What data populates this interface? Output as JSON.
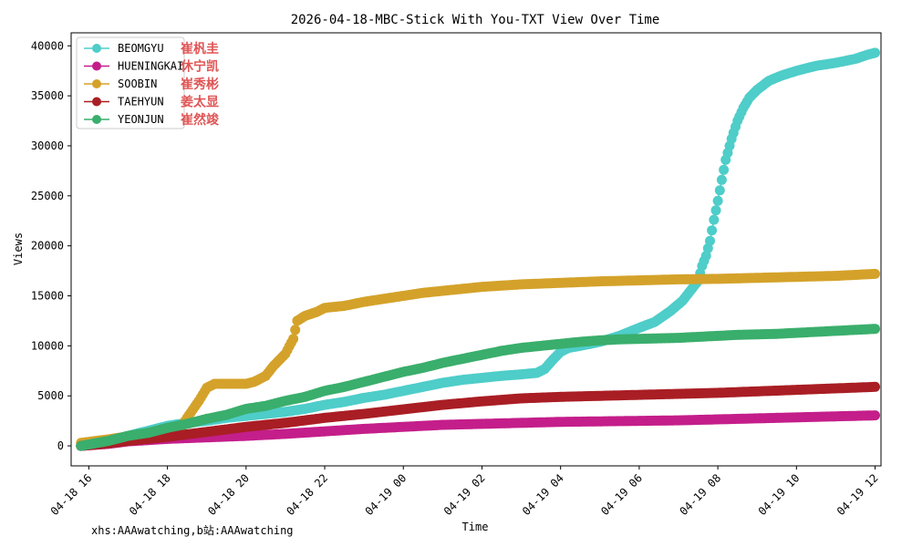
{
  "chart_data": {
    "type": "line",
    "title": "2026-04-18-MBC-Stick With You-TXT View Over Time",
    "xlabel": "Time",
    "ylabel": "Views",
    "xlim": [
      15.55,
      36.15
    ],
    "ylim": [
      -2000,
      41300
    ],
    "xticks": [
      {
        "value": 16,
        "label": "04-18 16"
      },
      {
        "value": 18,
        "label": "04-18 18"
      },
      {
        "value": 20,
        "label": "04-18 20"
      },
      {
        "value": 22,
        "label": "04-18 22"
      },
      {
        "value": 24,
        "label": "04-19 00"
      },
      {
        "value": 26,
        "label": "04-19 02"
      },
      {
        "value": 28,
        "label": "04-19 04"
      },
      {
        "value": 30,
        "label": "04-19 06"
      },
      {
        "value": 32,
        "label": "04-19 08"
      },
      {
        "value": 34,
        "label": "04-19 10"
      },
      {
        "value": 36,
        "label": "04-19 12"
      }
    ],
    "yticks": [
      0,
      5000,
      10000,
      15000,
      20000,
      25000,
      30000,
      35000,
      40000
    ],
    "legend_position": "top-left",
    "series": [
      {
        "name": "BEOMGYU",
        "cn_name": "崔杋圭",
        "color": "#4ecdc9",
        "points": [
          [
            15.8,
            0
          ],
          [
            16.5,
            500
          ],
          [
            17.0,
            1000
          ],
          [
            17.5,
            1500
          ],
          [
            18.0,
            2000
          ],
          [
            18.5,
            2300
          ],
          [
            19.0,
            2500
          ],
          [
            19.5,
            2800
          ],
          [
            20.0,
            3000
          ],
          [
            20.5,
            3200
          ],
          [
            21.0,
            3400
          ],
          [
            21.5,
            3700
          ],
          [
            22.0,
            4100
          ],
          [
            22.5,
            4400
          ],
          [
            23.0,
            4800
          ],
          [
            23.5,
            5100
          ],
          [
            24.0,
            5500
          ],
          [
            24.5,
            5900
          ],
          [
            25.0,
            6300
          ],
          [
            25.5,
            6600
          ],
          [
            26.0,
            6800
          ],
          [
            26.5,
            7000
          ],
          [
            27.0,
            7150
          ],
          [
            27.4,
            7300
          ],
          [
            27.6,
            7700
          ],
          [
            27.8,
            8600
          ],
          [
            28.0,
            9400
          ],
          [
            28.2,
            9800
          ],
          [
            28.5,
            10000
          ],
          [
            29.0,
            10400
          ],
          [
            29.5,
            11000
          ],
          [
            30.0,
            11800
          ],
          [
            30.4,
            12400
          ],
          [
            30.8,
            13500
          ],
          [
            31.1,
            14500
          ],
          [
            31.3,
            15500
          ],
          [
            31.5,
            16500
          ],
          [
            31.6,
            18000
          ],
          [
            31.7,
            19000
          ],
          [
            31.8,
            20500
          ],
          [
            31.9,
            22600
          ],
          [
            32.0,
            24500
          ],
          [
            32.1,
            26600
          ],
          [
            32.2,
            28600
          ],
          [
            32.35,
            30700
          ],
          [
            32.5,
            32500
          ],
          [
            32.65,
            33800
          ],
          [
            32.8,
            34800
          ],
          [
            33.0,
            35600
          ],
          [
            33.3,
            36500
          ],
          [
            33.6,
            37000
          ],
          [
            34.0,
            37500
          ],
          [
            34.5,
            38000
          ],
          [
            35.0,
            38300
          ],
          [
            35.5,
            38700
          ],
          [
            35.8,
            39100
          ],
          [
            36.0,
            39300
          ]
        ]
      },
      {
        "name": "HUENINGKAI",
        "cn_name": "休宁凯",
        "color": "#c41e8a",
        "points": [
          [
            15.8,
            0
          ],
          [
            16.5,
            200
          ],
          [
            17.0,
            450
          ],
          [
            18.0,
            700
          ],
          [
            19.0,
            850
          ],
          [
            20.0,
            1000
          ],
          [
            21.0,
            1200
          ],
          [
            22.0,
            1450
          ],
          [
            23.0,
            1700
          ],
          [
            24.0,
            1900
          ],
          [
            25.0,
            2100
          ],
          [
            26.0,
            2200
          ],
          [
            27.0,
            2300
          ],
          [
            28.0,
            2400
          ],
          [
            29.0,
            2450
          ],
          [
            30.0,
            2500
          ],
          [
            31.0,
            2550
          ],
          [
            32.0,
            2650
          ],
          [
            33.0,
            2750
          ],
          [
            34.0,
            2850
          ],
          [
            35.0,
            2950
          ],
          [
            36.0,
            3050
          ]
        ]
      },
      {
        "name": "SOOBIN",
        "cn_name": "崔秀彬",
        "color": "#d4a22a",
        "points": [
          [
            15.8,
            300
          ],
          [
            16.5,
            650
          ],
          [
            17.0,
            950
          ],
          [
            17.5,
            1100
          ],
          [
            18.0,
            1400
          ],
          [
            18.3,
            1600
          ],
          [
            18.5,
            2800
          ],
          [
            18.8,
            4500
          ],
          [
            19.0,
            5800
          ],
          [
            19.2,
            6200
          ],
          [
            19.5,
            6200
          ],
          [
            20.0,
            6200
          ],
          [
            20.2,
            6400
          ],
          [
            20.5,
            7000
          ],
          [
            20.7,
            8000
          ],
          [
            21.0,
            9200
          ],
          [
            21.2,
            10700
          ],
          [
            21.3,
            12500
          ],
          [
            21.5,
            13000
          ],
          [
            21.8,
            13400
          ],
          [
            22.0,
            13800
          ],
          [
            22.5,
            14000
          ],
          [
            23.0,
            14400
          ],
          [
            23.5,
            14700
          ],
          [
            24.0,
            15000
          ],
          [
            24.5,
            15300
          ],
          [
            25.0,
            15500
          ],
          [
            25.5,
            15700
          ],
          [
            26.0,
            15900
          ],
          [
            27.0,
            16150
          ],
          [
            28.0,
            16300
          ],
          [
            29.0,
            16450
          ],
          [
            30.0,
            16550
          ],
          [
            31.0,
            16650
          ],
          [
            32.0,
            16700
          ],
          [
            33.0,
            16800
          ],
          [
            34.0,
            16900
          ],
          [
            35.0,
            17000
          ],
          [
            36.0,
            17200
          ]
        ]
      },
      {
        "name": "TAEHYUN",
        "cn_name": "姜太显",
        "color": "#a91e24",
        "points": [
          [
            15.8,
            0
          ],
          [
            16.5,
            250
          ],
          [
            17.0,
            500
          ],
          [
            18.0,
            900
          ],
          [
            19.0,
            1400
          ],
          [
            20.0,
            1900
          ],
          [
            21.0,
            2300
          ],
          [
            22.0,
            2800
          ],
          [
            23.0,
            3200
          ],
          [
            24.0,
            3650
          ],
          [
            25.0,
            4100
          ],
          [
            26.0,
            4450
          ],
          [
            27.0,
            4750
          ],
          [
            28.0,
            4900
          ],
          [
            29.0,
            5000
          ],
          [
            30.0,
            5100
          ],
          [
            31.0,
            5200
          ],
          [
            32.0,
            5300
          ],
          [
            33.0,
            5450
          ],
          [
            34.0,
            5600
          ],
          [
            35.0,
            5750
          ],
          [
            36.0,
            5900
          ]
        ]
      },
      {
        "name": "YEONJUN",
        "cn_name": "崔然竣",
        "color": "#3aae6c",
        "points": [
          [
            15.8,
            0
          ],
          [
            16.5,
            500
          ],
          [
            17.0,
            1000
          ],
          [
            17.5,
            1300
          ],
          [
            18.0,
            1800
          ],
          [
            18.5,
            2200
          ],
          [
            19.0,
            2700
          ],
          [
            19.5,
            3100
          ],
          [
            20.0,
            3700
          ],
          [
            20.5,
            4000
          ],
          [
            21.0,
            4500
          ],
          [
            21.5,
            4900
          ],
          [
            22.0,
            5500
          ],
          [
            22.5,
            5900
          ],
          [
            23.0,
            6400
          ],
          [
            23.5,
            6900
          ],
          [
            24.0,
            7400
          ],
          [
            24.5,
            7800
          ],
          [
            25.0,
            8300
          ],
          [
            25.5,
            8700
          ],
          [
            26.0,
            9100
          ],
          [
            26.5,
            9500
          ],
          [
            27.0,
            9800
          ],
          [
            27.5,
            10000
          ],
          [
            28.0,
            10200
          ],
          [
            28.5,
            10400
          ],
          [
            29.0,
            10550
          ],
          [
            29.5,
            10650
          ],
          [
            30.0,
            10700
          ],
          [
            30.5,
            10750
          ],
          [
            31.0,
            10800
          ],
          [
            31.5,
            10900
          ],
          [
            32.0,
            11000
          ],
          [
            32.5,
            11100
          ],
          [
            33.0,
            11150
          ],
          [
            33.5,
            11200
          ],
          [
            34.0,
            11300
          ],
          [
            34.5,
            11400
          ],
          [
            35.0,
            11500
          ],
          [
            35.5,
            11600
          ],
          [
            36.0,
            11700
          ]
        ]
      }
    ]
  },
  "credit": "xhs:AAAwatching,b站:AAAwatching"
}
